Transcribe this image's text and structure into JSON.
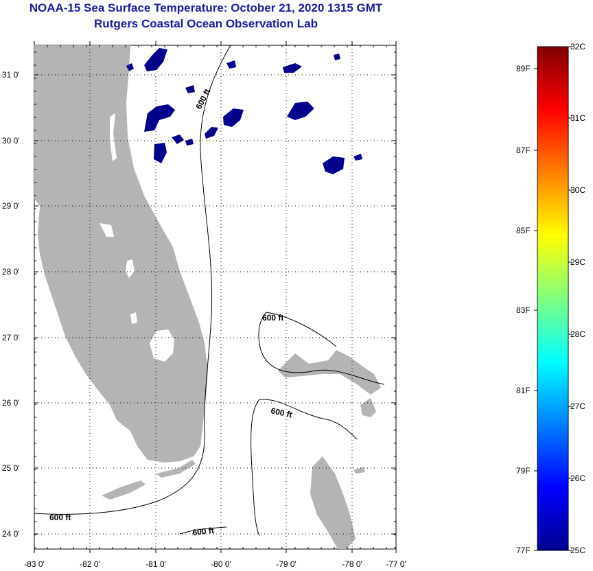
{
  "title": {
    "line1": "NOAA-15 Sea Surface Temperature:  October 21, 2020 1315 GMT",
    "line2": "Rutgers Coastal Ocean Observation Lab"
  },
  "map": {
    "lat_labels": [
      "31 0'",
      "30 0'",
      "29 0'",
      "28 0'",
      "27 0'",
      "26 0'",
      "25 0'",
      "24 0'"
    ],
    "lon_labels": [
      "-83 0'",
      "-82 0'",
      "-81 0'",
      "-80 0'",
      "-79 0'",
      "-78 0'",
      "-77 0'"
    ],
    "contour_label": "600 ft",
    "land_color": "#b4b4b4",
    "cloud_color": "#00008c",
    "sst_color_water": "#ffffff"
  },
  "colorbar": {
    "fahrenheit_labels": [
      "89F",
      "87F",
      "85F",
      "83F",
      "81F",
      "79F",
      "77F"
    ],
    "celsius_labels": [
      "32C",
      "31C",
      "30C",
      "29C",
      "28C",
      "27C",
      "26C",
      "25C"
    ],
    "min_c": 25,
    "max_c": 32
  }
}
